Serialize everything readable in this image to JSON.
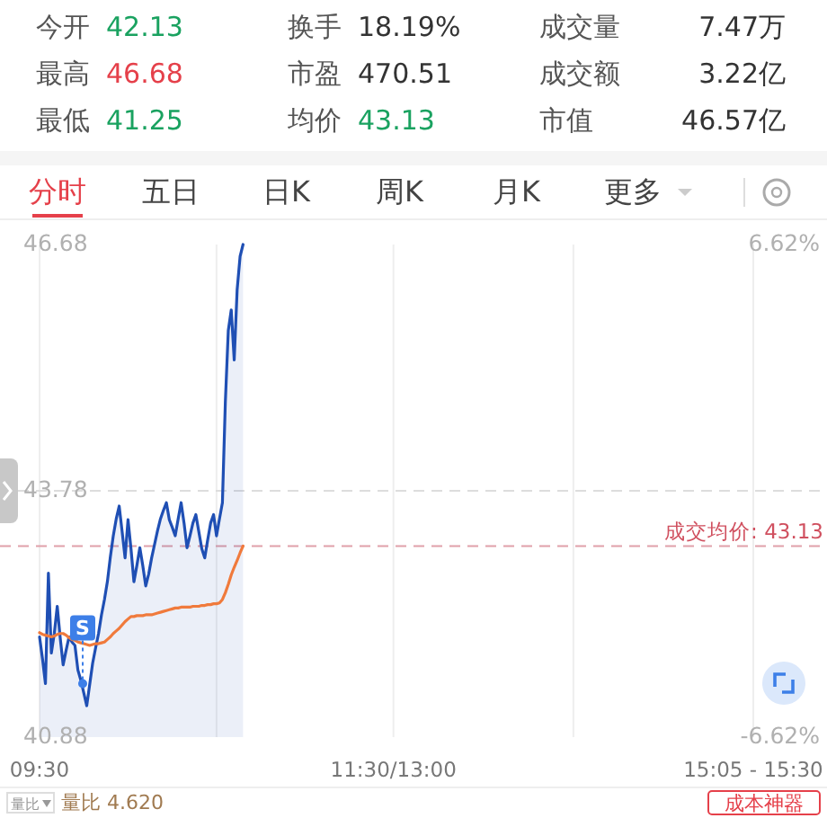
{
  "chart_data": {
    "type": "line",
    "categories": [
      "09:30",
      null,
      null,
      null,
      null,
      null,
      null,
      null,
      null,
      null,
      null,
      null,
      null,
      null,
      null,
      null,
      null,
      null,
      null,
      null,
      null,
      null,
      null,
      null,
      null,
      null,
      null,
      null,
      null,
      null,
      null,
      null,
      null,
      null,
      null,
      null,
      null,
      null,
      null,
      null,
      null,
      null,
      null,
      null,
      null,
      null,
      null,
      null,
      null,
      null,
      null,
      null,
      null,
      null,
      null,
      null,
      null,
      null,
      null,
      null,
      null,
      null,
      null,
      null,
      null,
      null,
      null,
      null,
      null,
      null,
      null,
      null,
      null,
      null,
      null,
      null,
      null,
      null,
      null,
      null,
      null,
      null,
      null,
      null,
      null,
      null,
      null,
      null,
      null,
      null,
      null,
      null,
      null,
      null,
      null,
      null,
      null,
      null,
      null,
      null,
      null,
      null,
      null,
      null,
      null,
      null,
      null,
      null,
      null,
      null,
      null,
      null,
      null,
      null,
      null,
      null,
      null,
      null,
      null,
      null,
      "11:30/13:00",
      null,
      null,
      null,
      null,
      null,
      null,
      null,
      null,
      null,
      null,
      null,
      null,
      null,
      null,
      null,
      null,
      null,
      null,
      null,
      null,
      null,
      null,
      null,
      null,
      null,
      null,
      null,
      null,
      null,
      null,
      null,
      null,
      null,
      null,
      null,
      null,
      null,
      null,
      null,
      null,
      null,
      null,
      null,
      null,
      null,
      null,
      null,
      null,
      null,
      null,
      null,
      null,
      null,
      null,
      null,
      null,
      null,
      null,
      null,
      null,
      null,
      null,
      null,
      null,
      null,
      null,
      null,
      null,
      null,
      null,
      null,
      null,
      null,
      null,
      null,
      null,
      null,
      null,
      null,
      null,
      null,
      null,
      null,
      null,
      null,
      null,
      null,
      null,
      null,
      null,
      null,
      null,
      null,
      null,
      null,
      null,
      null,
      null,
      null,
      null,
      null,
      null,
      null,
      null,
      null,
      null,
      null,
      null,
      null,
      null,
      null,
      null,
      null,
      null,
      null,
      null,
      null,
      null,
      null,
      null,
      null,
      "15:05 - 15:30",
      null,
      null,
      null,
      null,
      null,
      null,
      null,
      null,
      null,
      null,
      null,
      null,
      null,
      null,
      null,
      null,
      null,
      null,
      null,
      null,
      null,
      null,
      null,
      null,
      null
    ],
    "ylim": [
      40.88,
      46.68
    ],
    "yticks": [
      40.88,
      43.78,
      46.68
    ],
    "y2lim": [
      -6.62,
      6.62
    ],
    "y2ticks": [
      {
        "value": -6.62,
        "label": "-6.62%"
      },
      {
        "value": 6.62,
        "label": "6.62%"
      }
    ],
    "grid": "x",
    "ref_lines": [
      {
        "axis": "y",
        "value": 43.78,
        "color": "#dddddd",
        "line_style": "dashed"
      },
      {
        "axis": "y",
        "value": 43.13,
        "label": "成交均价: 43.13",
        "color": "#e0a0aa",
        "line_style": "dashed"
      }
    ],
    "series": [
      {
        "type": "area",
        "color": "#1f4fb4",
        "values": [
          42.06,
          41.8,
          41.51,
          42.81,
          41.87,
          42.1,
          42.42,
          42.05,
          41.73,
          41.9,
          42.06,
          42.0,
          41.96,
          41.67,
          41.55,
          41.4,
          41.25,
          41.5,
          41.75,
          41.93,
          42.1,
          42.32,
          42.5,
          42.71,
          43.0,
          43.25,
          43.45,
          43.6,
          43.3,
          42.99,
          43.44,
          43.1,
          42.71,
          42.9,
          43.11,
          42.9,
          42.66,
          42.8,
          42.99,
          43.15,
          43.31,
          43.45,
          43.55,
          43.64,
          43.44,
          43.35,
          43.25,
          43.45,
          43.64,
          43.4,
          43.11,
          43.25,
          43.4,
          43.5,
          43.3,
          43.1,
          42.99,
          43.2,
          43.4,
          43.5,
          43.25,
          43.45,
          43.64,
          44.83,
          45.67,
          45.91,
          45.32,
          46.15,
          46.54,
          46.68,
          null,
          null,
          null,
          null,
          null,
          null,
          null,
          null,
          null,
          null,
          null,
          null,
          null,
          null,
          null,
          null,
          null,
          null,
          null,
          null,
          null,
          null,
          null,
          null,
          null,
          null,
          null,
          null,
          null,
          null,
          null,
          null,
          null,
          null,
          null,
          null,
          null,
          null,
          null,
          null,
          null,
          null,
          null,
          null,
          null,
          null,
          null,
          null,
          null,
          null,
          null,
          null,
          null,
          null,
          null,
          null,
          null,
          null,
          null,
          null,
          null,
          null,
          null,
          null,
          null,
          null,
          null,
          null,
          null,
          null,
          null,
          null,
          null,
          null,
          null,
          null,
          null,
          null,
          null,
          null,
          null,
          null,
          null,
          null,
          null,
          null,
          null,
          null,
          null,
          null,
          null,
          null,
          null,
          null,
          null,
          null,
          null,
          null,
          null,
          null,
          null,
          null,
          null,
          null,
          null,
          null,
          null,
          null,
          null,
          null,
          null,
          null,
          null,
          null,
          null,
          null,
          null,
          null,
          null,
          null,
          null,
          null,
          null,
          null,
          null,
          null,
          null,
          null,
          null,
          null,
          null,
          null,
          null,
          null,
          null,
          null,
          null,
          null,
          null,
          null,
          null,
          null,
          null,
          null,
          null,
          null,
          null,
          null,
          null,
          null,
          null,
          null,
          null,
          null,
          null,
          null,
          null,
          null,
          null,
          null,
          null,
          null,
          null,
          null,
          null,
          null,
          null,
          null,
          null,
          null,
          null,
          null,
          null,
          null,
          null,
          null,
          null,
          null,
          null,
          null,
          null,
          null,
          null,
          null,
          null,
          null,
          null,
          null,
          null,
          null,
          null,
          null,
          null,
          null,
          null,
          null,
          null,
          null
        ]
      },
      {
        "type": "line",
        "color": "#f07a3c",
        "values": [
          42.11,
          42.09,
          42.08,
          42.07,
          42.06,
          42.07,
          42.09,
          42.1,
          42.1,
          42.08,
          42.05,
          42.03,
          42.02,
          42.0,
          41.99,
          41.98,
          41.97,
          41.96,
          41.97,
          41.98,
          41.98,
          41.99,
          42.0,
          42.03,
          42.06,
          42.1,
          42.13,
          42.16,
          42.2,
          42.24,
          42.27,
          42.3,
          42.3,
          42.31,
          42.31,
          42.31,
          42.32,
          42.32,
          42.32,
          42.33,
          42.34,
          42.35,
          42.36,
          42.37,
          42.38,
          42.39,
          42.4,
          42.4,
          42.41,
          42.41,
          42.41,
          42.41,
          42.42,
          42.42,
          42.42,
          42.43,
          42.43,
          42.44,
          42.44,
          42.45,
          42.45,
          42.46,
          42.5,
          42.58,
          42.68,
          42.79,
          42.88,
          42.96,
          43.05,
          43.13,
          null,
          null,
          null,
          null,
          null,
          null,
          null,
          null,
          null,
          null,
          null,
          null,
          null,
          null,
          null,
          null,
          null,
          null,
          null,
          null,
          null,
          null,
          null,
          null,
          null,
          null,
          null,
          null,
          null,
          null,
          null,
          null,
          null,
          null,
          null,
          null,
          null,
          null,
          null,
          null,
          null,
          null,
          null,
          null,
          null,
          null,
          null,
          null,
          null,
          null,
          null,
          null,
          null,
          null,
          null,
          null,
          null,
          null,
          null,
          null,
          null,
          null,
          null,
          null,
          null,
          null,
          null,
          null,
          null,
          null,
          null,
          null,
          null,
          null,
          null,
          null,
          null,
          null,
          null,
          null,
          null,
          null,
          null,
          null,
          null,
          null,
          null,
          null,
          null,
          null,
          null,
          null,
          null,
          null,
          null,
          null,
          null,
          null,
          null,
          null,
          null,
          null,
          null,
          null,
          null,
          null,
          null,
          null,
          null,
          null,
          null,
          null,
          null,
          null,
          null,
          null,
          null,
          null,
          null,
          null,
          null,
          null,
          null,
          null,
          null,
          null,
          null,
          null,
          null,
          null,
          null,
          null,
          null,
          null,
          null,
          null,
          null,
          null,
          null,
          null,
          null,
          null,
          null,
          null,
          null,
          null,
          null,
          null,
          null,
          null,
          null,
          null,
          null,
          null,
          null,
          null,
          null,
          null,
          null,
          null,
          null,
          null,
          null,
          null,
          null,
          null,
          null,
          null,
          null,
          null,
          null,
          null,
          null,
          null,
          null,
          null,
          null,
          null,
          null,
          null,
          null,
          null,
          null,
          null,
          null,
          null,
          null,
          null,
          null,
          null,
          null,
          null,
          null,
          null,
          null,
          null,
          null,
          null
        ]
      }
    ],
    "annotations": [
      "今开 42.13",
      "换手 18.19%",
      "成交量 7.47万",
      "最高 46.68",
      "市盈 470.51",
      "成交额 3.22亿",
      "最低 41.25",
      "均价 43.13",
      "市值 46.57亿",
      "分时",
      "五日",
      "日K",
      "周K",
      "月K",
      "更多",
      "量比",
      "量比 4.620",
      "成本神器",
      {
        "text": "S",
        "y": 41.51
      }
    ]
  }
}
